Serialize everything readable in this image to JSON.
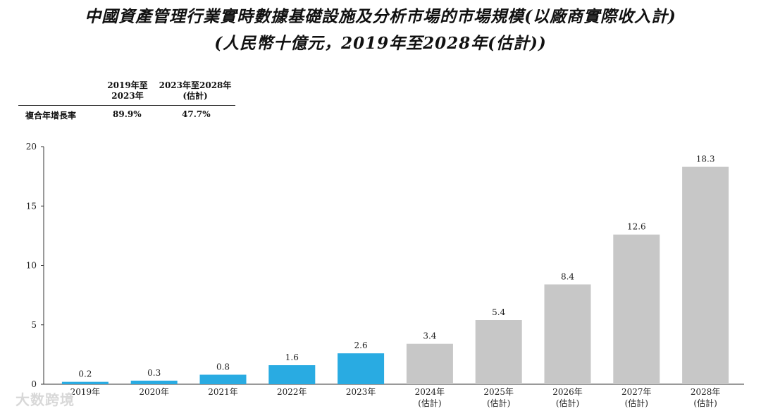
{
  "title_line1": "中國資產管理行業實時數據基礎設施及分析市場的市場規模(以廠商實際收入計)",
  "title_line2": "(人民幣十億元，2019年至2028年(估計))",
  "cagr_table": {
    "row_label": "複合年增長率",
    "columns": [
      {
        "header_line1": "2019年至",
        "header_line2": "2023年",
        "value": "89.9%"
      },
      {
        "header_line1": "2023年至2028年",
        "header_line2": "(估計)",
        "value": "47.7%"
      }
    ]
  },
  "watermark": "大数跨境",
  "colors": {
    "historical": "#29abe2",
    "forecast": "#c7c7c7"
  },
  "chart_data": {
    "type": "bar",
    "categories": [
      "2019年",
      "2020年",
      "2021年",
      "2022年",
      "2023年",
      "2024年",
      "2025年",
      "2026年",
      "2027年",
      "2028年"
    ],
    "sublabels": [
      "",
      "",
      "",
      "",
      "",
      "(估計)",
      "(估計)",
      "(估計)",
      "(估計)",
      "(估計)"
    ],
    "values": [
      0.2,
      0.3,
      0.8,
      1.6,
      2.6,
      3.4,
      5.4,
      8.4,
      12.6,
      18.3
    ],
    "value_labels": [
      "0.2",
      "0.3",
      "0.8",
      "1.6",
      "2.6",
      "3.4",
      "5.4",
      "8.4",
      "12.6",
      "18.3"
    ],
    "forecast": [
      false,
      false,
      false,
      false,
      false,
      true,
      true,
      true,
      true,
      true
    ],
    "ylim": [
      0,
      20
    ],
    "yticks": [
      0,
      5,
      10,
      15,
      20
    ],
    "title": "",
    "xlabel": "",
    "ylabel": "",
    "grid": false
  }
}
